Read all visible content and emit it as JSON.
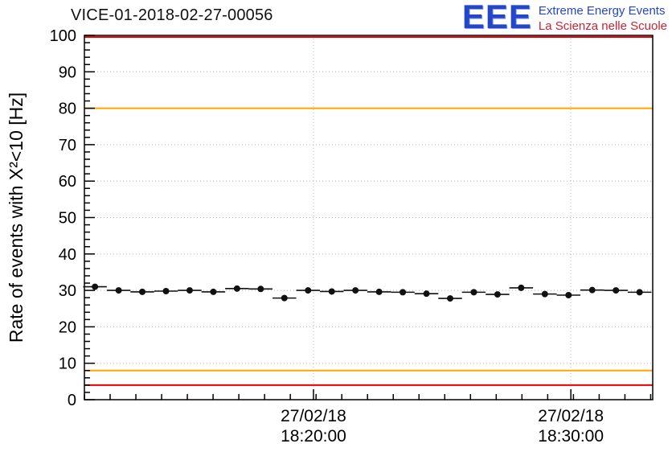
{
  "header": {
    "title": "VICE-01-2018-02-27-00056"
  },
  "logo": {
    "acronym": "EEE",
    "line1": "Extreme Energy Events",
    "line2": "La Scienza nelle Scuole",
    "blue": "#2446c8",
    "red": "#cc2233"
  },
  "chart_data": {
    "type": "scatter",
    "title": "VICE-01-2018-02-27-00056",
    "ylabel": "Rate of events with X²<10 [Hz]",
    "ylim": [
      0,
      100
    ],
    "y_major_step": 10,
    "y_minor_step": 2,
    "xlim_minutes": [
      0,
      22.08
    ],
    "x_minor_step": 1,
    "x_ticks": [
      {
        "minute": 8.9,
        "label_date": "27/02/18",
        "label_time": "18:20:00"
      },
      {
        "minute": 18.9,
        "label_date": "27/02/18",
        "label_time": "18:30:00"
      }
    ],
    "grid": true,
    "grid_color": "#b8b8b8",
    "frame_color": "#000000",
    "threshold_lines": [
      {
        "y": 100,
        "color": "#ee0000",
        "name": "alarm-line-high"
      },
      {
        "y": 80,
        "color": "#ffa500",
        "name": "warning-line-high"
      },
      {
        "y": 8,
        "color": "#ffa500",
        "name": "warning-line-low"
      },
      {
        "y": 4,
        "color": "#ee0000",
        "name": "alarm-line-low"
      }
    ],
    "marker": {
      "color": "#111111",
      "radius": 4
    },
    "bin_halfwidth_minutes": 0.46,
    "points": [
      {
        "t": 0.41,
        "y": 31.0
      },
      {
        "t": 1.33,
        "y": 30.0
      },
      {
        "t": 2.25,
        "y": 29.6
      },
      {
        "t": 3.17,
        "y": 29.8
      },
      {
        "t": 4.09,
        "y": 30.0
      },
      {
        "t": 5.01,
        "y": 29.6
      },
      {
        "t": 5.93,
        "y": 30.5
      },
      {
        "t": 6.85,
        "y": 30.4
      },
      {
        "t": 7.77,
        "y": 27.9
      },
      {
        "t": 8.69,
        "y": 30.0
      },
      {
        "t": 9.61,
        "y": 29.7
      },
      {
        "t": 10.53,
        "y": 30.0
      },
      {
        "t": 11.45,
        "y": 29.6
      },
      {
        "t": 12.37,
        "y": 29.5
      },
      {
        "t": 13.29,
        "y": 29.1
      },
      {
        "t": 14.21,
        "y": 27.8
      },
      {
        "t": 15.13,
        "y": 29.5
      },
      {
        "t": 16.05,
        "y": 28.9
      },
      {
        "t": 16.97,
        "y": 30.7
      },
      {
        "t": 17.89,
        "y": 29.0
      },
      {
        "t": 18.81,
        "y": 28.7
      },
      {
        "t": 19.73,
        "y": 30.1
      },
      {
        "t": 20.65,
        "y": 30.0
      },
      {
        "t": 21.57,
        "y": 29.5
      }
    ]
  }
}
